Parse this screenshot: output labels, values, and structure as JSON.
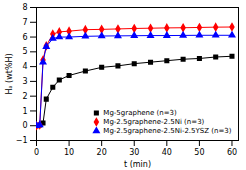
{
  "chart_data": {
    "type": "line",
    "xlabel": "t (min)",
    "ylabel": "Hₐ (wt%H)",
    "xlim": [
      0,
      62
    ],
    "ylim": [
      -1,
      8
    ],
    "xticks": [
      0,
      10,
      20,
      30,
      40,
      50,
      60
    ],
    "yticks": [
      -1,
      0,
      1,
      2,
      3,
      4,
      5,
      6,
      7,
      8
    ],
    "legend": "lower right",
    "x": [
      0,
      1,
      2,
      3,
      5,
      7,
      10,
      15,
      20,
      25,
      30,
      35,
      40,
      45,
      50,
      55,
      60
    ],
    "series": [
      {
        "name": "Mg-5graphene (n=3)",
        "color": "#000000",
        "marker": "square",
        "values": [
          0,
          0.05,
          0.18,
          1.8,
          2.6,
          3.1,
          3.4,
          3.7,
          3.95,
          4.05,
          4.2,
          4.3,
          4.4,
          4.5,
          4.55,
          4.65,
          4.7
        ]
      },
      {
        "name": "Mg-2.5graphene-2.5Ni (n=3)",
        "color": "#ff0000",
        "marker": "diamond",
        "values": [
          0,
          0.05,
          4.45,
          5.4,
          6.2,
          6.35,
          6.4,
          6.5,
          6.52,
          6.55,
          6.58,
          6.6,
          6.62,
          6.63,
          6.65,
          6.67,
          6.68
        ]
      },
      {
        "name": "Mg-2.5graphene-2.5Ni-2.5YSZ (n=3)",
        "color": "#0000ff",
        "marker": "triangle",
        "values": [
          0,
          0.05,
          4.3,
          5.35,
          5.9,
          6.0,
          6.0,
          6.05,
          6.07,
          6.08,
          6.09,
          6.1,
          6.1,
          6.11,
          6.12,
          6.12,
          6.12
        ]
      }
    ]
  }
}
